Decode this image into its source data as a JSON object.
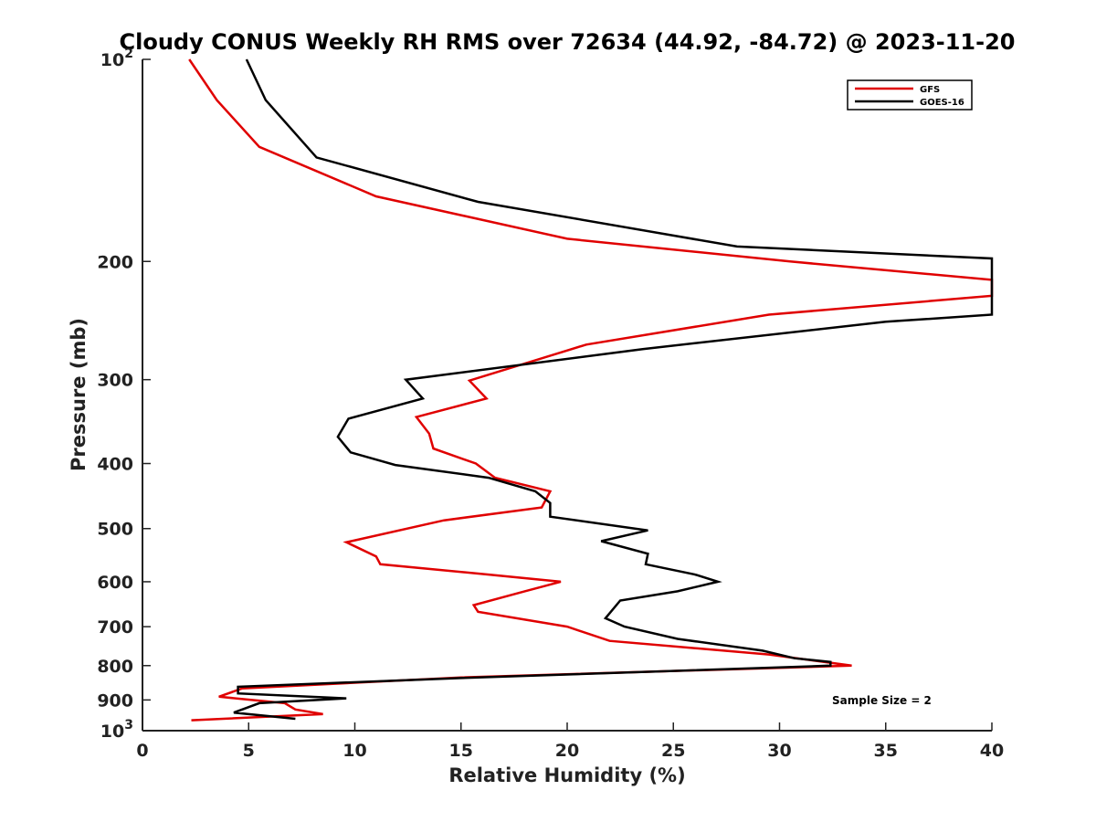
{
  "chart_data": {
    "type": "line",
    "title": "Cloudy CONUS Weekly RH RMS over 72634 (44.92, -84.72) @ 2023-11-20",
    "xlabel": "Relative Humidity (%)",
    "ylabel": "Pressure (mb)",
    "xlim": [
      0,
      40
    ],
    "ylim": [
      100,
      1000
    ],
    "y_scale": "log",
    "y_reversed": true,
    "grid": false,
    "legend_position": "top-right",
    "x_ticks": [
      "0",
      "5",
      "10",
      "15",
      "20",
      "25",
      "30",
      "35",
      "40"
    ],
    "y_ticks": [
      {
        "value": 100,
        "base": "10",
        "exp": "2"
      },
      {
        "value": 200,
        "label": "200"
      },
      {
        "value": 300,
        "label": "300"
      },
      {
        "value": 400,
        "label": "400"
      },
      {
        "value": 500,
        "label": "500"
      },
      {
        "value": 600,
        "label": "600"
      },
      {
        "value": 700,
        "label": "700"
      },
      {
        "value": 800,
        "label": "800"
      },
      {
        "value": 900,
        "label": "900"
      },
      {
        "value": 1000,
        "base": "10",
        "exp": "3"
      }
    ],
    "series": [
      {
        "name": "GFS",
        "color": "#e00000",
        "points": [
          [
            2.2,
            100
          ],
          [
            3.5,
            115
          ],
          [
            5.5,
            135
          ],
          [
            11,
            160
          ],
          [
            20,
            185
          ],
          [
            30.5,
            200
          ],
          [
            40,
            213
          ],
          [
            40,
            225
          ],
          [
            29.5,
            240
          ],
          [
            20.9,
            266
          ],
          [
            15.4,
            301
          ],
          [
            16.2,
            320
          ],
          [
            12.9,
            341
          ],
          [
            13.5,
            361
          ],
          [
            13.7,
            380
          ],
          [
            15.7,
            400
          ],
          [
            16.6,
            420
          ],
          [
            19.2,
            440
          ],
          [
            18.8,
            465
          ],
          [
            14.2,
            486
          ],
          [
            9.6,
            524
          ],
          [
            11,
            550
          ],
          [
            11.2,
            565
          ],
          [
            16.2,
            585
          ],
          [
            19.7,
            600
          ],
          [
            18,
            620
          ],
          [
            15.6,
            650
          ],
          [
            15.8,
            665
          ],
          [
            20,
            700
          ],
          [
            22,
            735
          ],
          [
            29.5,
            770
          ],
          [
            33.4,
            800
          ],
          [
            15,
            833
          ],
          [
            4.7,
            865
          ],
          [
            3.6,
            890
          ],
          [
            6.7,
            910
          ],
          [
            7.2,
            930
          ],
          [
            8.5,
            945
          ],
          [
            2.3,
            965
          ]
        ]
      },
      {
        "name": "GOES-16",
        "color": "#000000",
        "points": [
          [
            4.9,
            100
          ],
          [
            5.8,
            115
          ],
          [
            8.2,
            140
          ],
          [
            15.8,
            163
          ],
          [
            28,
            190
          ],
          [
            40,
            198
          ],
          [
            40,
            240
          ],
          [
            35,
            246
          ],
          [
            23.6,
            270
          ],
          [
            12.4,
            300
          ],
          [
            13.2,
            320
          ],
          [
            9.7,
            343
          ],
          [
            9.2,
            365
          ],
          [
            9.8,
            385
          ],
          [
            11.9,
            402
          ],
          [
            16.3,
            420
          ],
          [
            18.5,
            440
          ],
          [
            19.2,
            458
          ],
          [
            19.2,
            480
          ],
          [
            23.8,
            503
          ],
          [
            21.6,
            522
          ],
          [
            23.8,
            545
          ],
          [
            23.7,
            565
          ],
          [
            26,
            585
          ],
          [
            27.1,
            600
          ],
          [
            25.2,
            620
          ],
          [
            22.5,
            640
          ],
          [
            21.8,
            680
          ],
          [
            22.7,
            700
          ],
          [
            25.2,
            730
          ],
          [
            29.2,
            760
          ],
          [
            30.7,
            780
          ],
          [
            32.4,
            790
          ],
          [
            32.4,
            800
          ],
          [
            15,
            835
          ],
          [
            4.5,
            860
          ],
          [
            4.5,
            880
          ],
          [
            9.6,
            895
          ],
          [
            5.5,
            910
          ],
          [
            4.3,
            940
          ],
          [
            7.2,
            960
          ]
        ]
      }
    ],
    "annotation": "Sample Size = 2"
  }
}
